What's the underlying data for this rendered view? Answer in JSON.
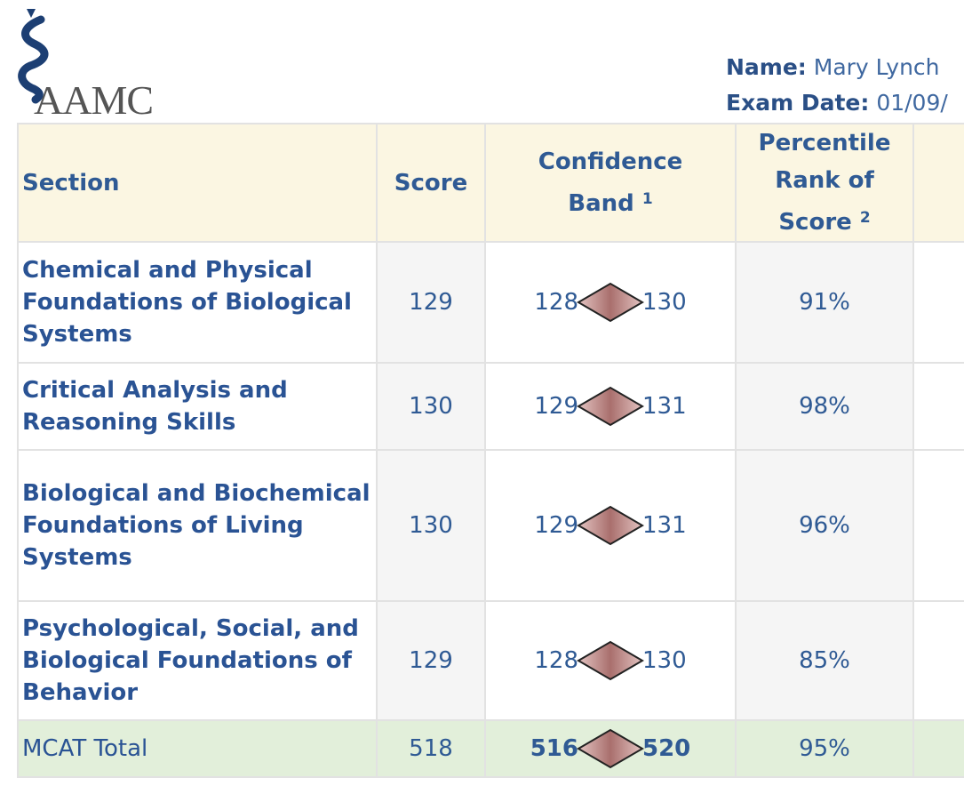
{
  "logo": {
    "text": "AAMC"
  },
  "candidate": {
    "name_label": "Name:",
    "name": "Mary Lynch",
    "date_label": "Exam Date:",
    "date": "01/09/"
  },
  "table": {
    "headers": {
      "section": "Section",
      "score": "Score",
      "band": "Confidence Band",
      "band_note": "1",
      "percentile": "Percentile Rank of Score",
      "percentile_note": "2"
    },
    "rows": [
      {
        "section": "Chemical and Physical Foundations of Biological Systems",
        "score": "129",
        "low": "128",
        "high": "130",
        "percentile": "91%"
      },
      {
        "section": "Critical Analysis and Reasoning Skills",
        "score": "130",
        "low": "129",
        "high": "131",
        "percentile": "98%"
      },
      {
        "section": "Biological and Biochemical Foundations of Living Systems",
        "score": "130",
        "low": "129",
        "high": "131",
        "percentile": "96%"
      },
      {
        "section": "Psychological, Social, and Biological Foundations of Behavior",
        "score": "129",
        "low": "128",
        "high": "130",
        "percentile": "85%"
      }
    ],
    "total": {
      "section": "MCAT Total",
      "score": "518",
      "low": "516",
      "high": "520",
      "percentile": "95%"
    }
  },
  "colors": {
    "header_bg": "#fbf6e2",
    "total_bg": "#e2efda",
    "text": "#2f5a94",
    "diamond": "#b07a78"
  }
}
